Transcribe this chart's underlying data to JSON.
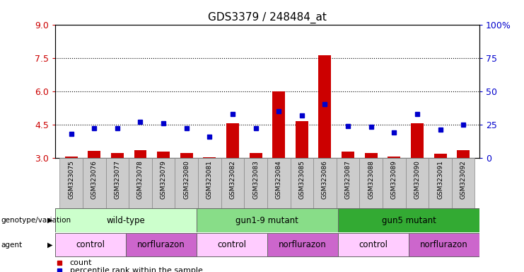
{
  "title": "GDS3379 / 248484_at",
  "samples": [
    "GSM323075",
    "GSM323076",
    "GSM323077",
    "GSM323078",
    "GSM323079",
    "GSM323080",
    "GSM323081",
    "GSM323082",
    "GSM323083",
    "GSM323084",
    "GSM323085",
    "GSM323086",
    "GSM323087",
    "GSM323088",
    "GSM323089",
    "GSM323090",
    "GSM323091",
    "GSM323092"
  ],
  "bar_values": [
    3.05,
    3.3,
    3.2,
    3.35,
    3.28,
    3.22,
    3.02,
    4.55,
    3.22,
    6.0,
    4.65,
    7.6,
    3.28,
    3.22,
    3.05,
    4.55,
    3.18,
    3.35
  ],
  "dot_values": [
    18,
    22,
    22,
    27,
    26,
    22,
    16,
    33,
    22,
    35,
    32,
    40,
    24,
    23,
    19,
    33,
    21,
    25
  ],
  "bar_color": "#cc0000",
  "dot_color": "#0000cc",
  "ylim_left": [
    3,
    9
  ],
  "ylim_right": [
    0,
    100
  ],
  "yticks_left": [
    3,
    4.5,
    6,
    7.5,
    9
  ],
  "yticks_right": [
    0,
    25,
    50,
    75,
    100
  ],
  "hlines": [
    4.5,
    6.0,
    7.5
  ],
  "genotype_groups": [
    {
      "label": "wild-type",
      "start": 0,
      "end": 6,
      "color": "#ccffcc"
    },
    {
      "label": "gun1-9 mutant",
      "start": 6,
      "end": 12,
      "color": "#88dd88"
    },
    {
      "label": "gun5 mutant",
      "start": 12,
      "end": 18,
      "color": "#33aa33"
    }
  ],
  "agent_groups": [
    {
      "label": "control",
      "start": 0,
      "end": 3,
      "color": "#ffccff"
    },
    {
      "label": "norflurazon",
      "start": 3,
      "end": 6,
      "color": "#cc66cc"
    },
    {
      "label": "control",
      "start": 6,
      "end": 9,
      "color": "#ffccff"
    },
    {
      "label": "norflurazon",
      "start": 9,
      "end": 12,
      "color": "#cc66cc"
    },
    {
      "label": "control",
      "start": 12,
      "end": 15,
      "color": "#ffccff"
    },
    {
      "label": "norflurazon",
      "start": 15,
      "end": 18,
      "color": "#cc66cc"
    }
  ],
  "legend_count_color": "#cc0000",
  "legend_dot_color": "#0000cc",
  "xlabel_genotype": "genotype/variation",
  "xlabel_agent": "agent",
  "col_bg_color": "#cccccc",
  "col_border_color": "#888888"
}
